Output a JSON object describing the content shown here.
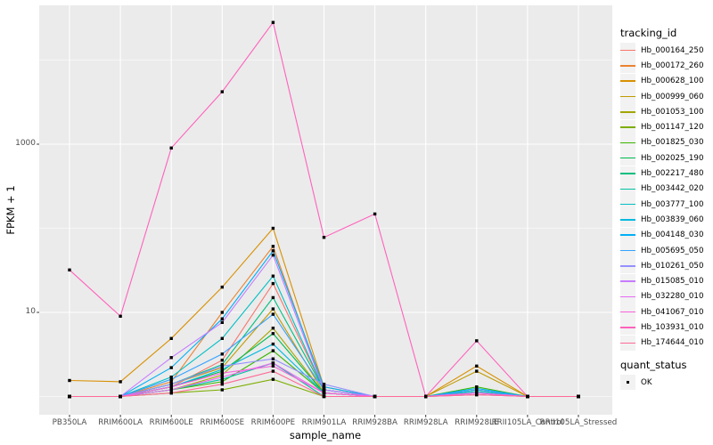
{
  "colors": {
    "panel_background": "#EBEBEB",
    "gridline": "#FFFFFF",
    "tick_mark": "#333333",
    "tick_label": "#4D4D4D",
    "axis_title": "#000000",
    "legend_key_background": "#F2F2F2",
    "point": "#000000"
  },
  "chart_data": {
    "type": "line",
    "title": "",
    "xlabel": "sample_name",
    "ylabel": "FPKM + 1",
    "y_scale": "log10",
    "grid": true,
    "legend_position": "right",
    "legend_title": "tracking_id",
    "point_legend": {
      "title": "quant_status",
      "items": [
        {
          "label": "OK"
        }
      ]
    },
    "y_axis_breaks": [
      {
        "label": "1000",
        "value": 1000
      },
      {
        "label": "10",
        "value": 10
      }
    ],
    "y_minor_break_values": [
      10000,
      100,
      1
    ],
    "ylim": [
      0.6,
      45000
    ],
    "categories": [
      "PB350LA",
      "RRIM600LA",
      "RRIM600LE",
      "RRIM600SE",
      "RRIM600PE",
      "RRIM901LA",
      "RRIM928BA",
      "RRIM928LA",
      "RRIM928LE",
      "RRII105LA_Control",
      "RRII105LA_Stressed"
    ],
    "series": [
      {
        "name": "Hb_000164_250",
        "color": "#F8766D",
        "values": [
          1,
          1,
          1.3,
          2.7,
          22,
          1.2,
          1,
          1,
          1.1,
          1,
          1
        ]
      },
      {
        "name": "Hb_000172_260",
        "color": "#EA8331",
        "values": [
          1,
          1,
          1.5,
          10,
          61,
          1.2,
          1,
          1,
          1.1,
          1,
          1
        ]
      },
      {
        "name": "Hb_000628_100",
        "color": "#D89000",
        "values": [
          1.55,
          1.5,
          4.9,
          20,
          100,
          1.3,
          1,
          1,
          2.3,
          1,
          1
        ]
      },
      {
        "name": "Hb_000999_060",
        "color": "#C09B00",
        "values": [
          1,
          1,
          1.4,
          2.2,
          11,
          1.1,
          1,
          1,
          2.0,
          1,
          1
        ]
      },
      {
        "name": "Hb_001053_100",
        "color": "#A3A500",
        "values": [
          1,
          1,
          1.2,
          1.8,
          6.5,
          1.1,
          1,
          1,
          1.2,
          1,
          1
        ]
      },
      {
        "name": "Hb_001147_120",
        "color": "#7CAE00",
        "values": [
          1,
          1,
          1.1,
          1.2,
          1.6,
          1,
          1,
          1,
          1.05,
          1,
          1
        ]
      },
      {
        "name": "Hb_001825_030",
        "color": "#39B600",
        "values": [
          1,
          1,
          1.2,
          1.5,
          3.5,
          1.1,
          1,
          1,
          1.3,
          1,
          1
        ]
      },
      {
        "name": "Hb_002025_190",
        "color": "#00BB4E",
        "values": [
          1,
          1,
          1.3,
          2.0,
          5.6,
          1.1,
          1,
          1,
          1.2,
          1,
          1
        ]
      },
      {
        "name": "Hb_002217_480",
        "color": "#00BF7D",
        "values": [
          1,
          1,
          1.4,
          2.4,
          15,
          1.2,
          1,
          1,
          1.1,
          1,
          1
        ]
      },
      {
        "name": "Hb_003442_020",
        "color": "#00C1A3",
        "values": [
          1,
          1,
          1.2,
          1.6,
          2.5,
          1,
          1,
          1,
          1.1,
          1,
          1
        ]
      },
      {
        "name": "Hb_003777_100",
        "color": "#00BFC4",
        "values": [
          1,
          1,
          1.7,
          4.9,
          27,
          1.2,
          1,
          1,
          1.15,
          1,
          1
        ]
      },
      {
        "name": "Hb_003839_060",
        "color": "#00BAE0",
        "values": [
          1,
          1,
          1.3,
          2.1,
          4.2,
          1.1,
          1,
          1,
          1.1,
          1,
          1
        ]
      },
      {
        "name": "Hb_004148_030",
        "color": "#00B0F6",
        "values": [
          1,
          1,
          2.2,
          8.4,
          54,
          1.3,
          1,
          1,
          1.25,
          1,
          1
        ]
      },
      {
        "name": "Hb_005695_050",
        "color": "#35A2FF",
        "values": [
          1,
          1,
          1.6,
          3.2,
          9.5,
          1.2,
          1,
          1,
          1.2,
          1,
          1
        ]
      },
      {
        "name": "Hb_010261_050",
        "color": "#9590FF",
        "values": [
          1,
          1,
          1.4,
          2.3,
          2.8,
          1.4,
          1,
          1,
          1.1,
          1,
          1
        ]
      },
      {
        "name": "Hb_015085_010",
        "color": "#C77CFF",
        "values": [
          1,
          1,
          2.9,
          7.6,
          48,
          1.2,
          1,
          1,
          1.1,
          1,
          1
        ]
      },
      {
        "name": "Hb_032280_010",
        "color": "#E76BF3",
        "values": [
          1,
          1,
          1.2,
          1.7,
          2.5,
          1.1,
          1,
          1,
          1.05,
          1,
          1
        ]
      },
      {
        "name": "Hb_041067_010",
        "color": "#FA62DB",
        "values": [
          1,
          1,
          1.3,
          1.9,
          2.3,
          1.1,
          1,
          1,
          1.1,
          1,
          1
        ]
      },
      {
        "name": "Hb_103931_010",
        "color": "#FF62BC",
        "values": [
          32,
          9,
          900,
          4200,
          28000,
          78,
          148,
          1,
          4.6,
          1,
          1
        ]
      },
      {
        "name": "Hb_174644_010",
        "color": "#FF6A98",
        "values": [
          1,
          1,
          1.1,
          1.4,
          2.0,
          1,
          1,
          1,
          1.05,
          1,
          1
        ]
      }
    ]
  }
}
